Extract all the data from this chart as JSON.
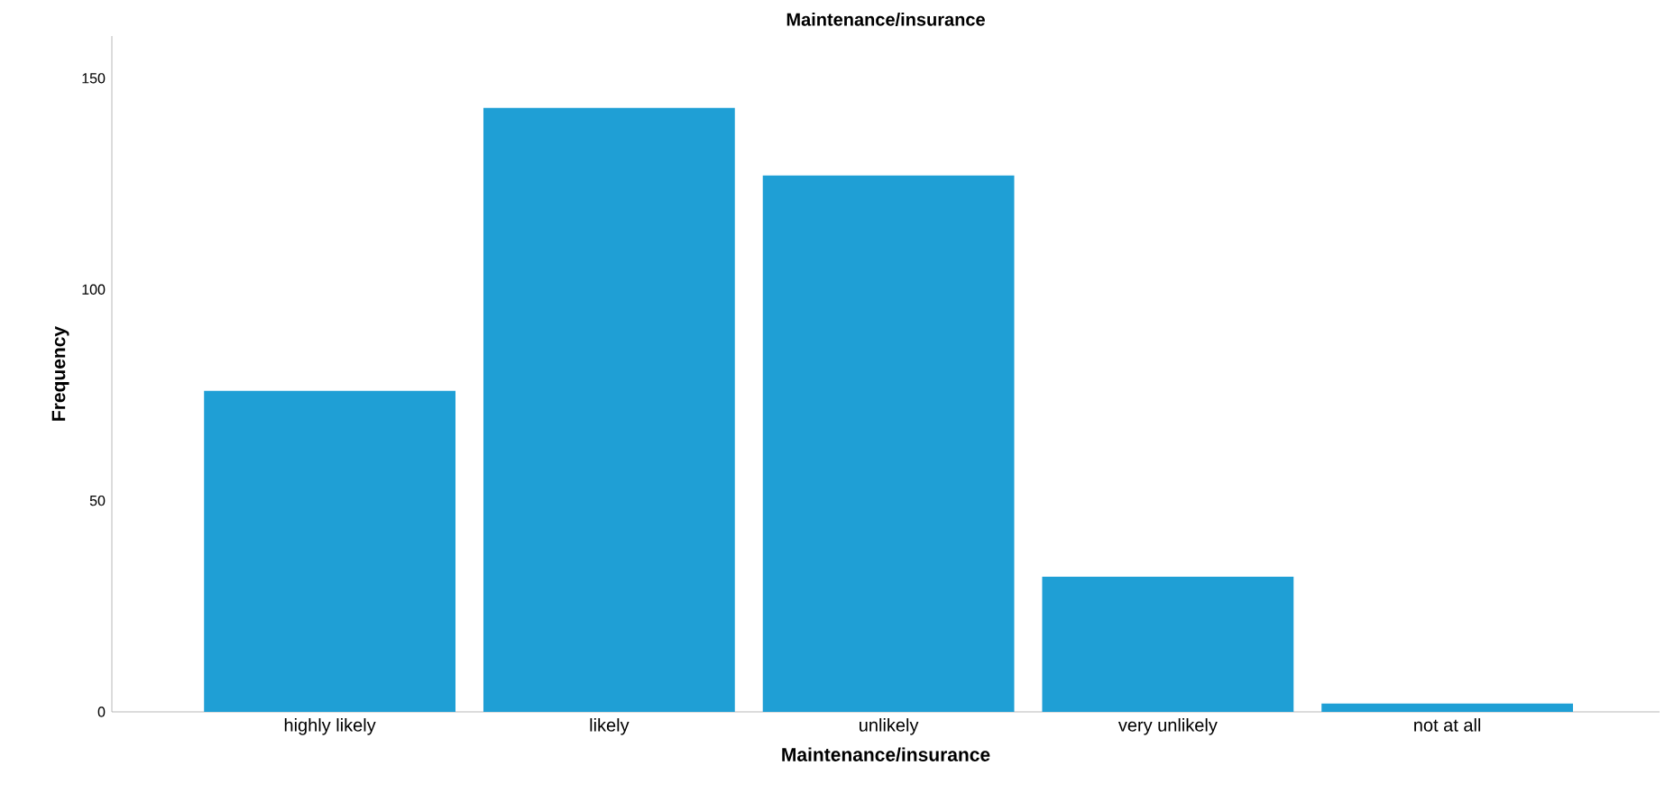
{
  "chart_data": {
    "type": "bar",
    "title": "Maintenance/insurance",
    "xlabel": "Maintenance/insurance",
    "ylabel": "Frequency",
    "categories": [
      "highly likely",
      "likely",
      "unlikely",
      "very unlikely",
      "not at all"
    ],
    "values": [
      76,
      143,
      127,
      32,
      2
    ],
    "color": "#1f9fd5",
    "ylim": [
      0,
      160
    ],
    "yticks": [
      0,
      50,
      100,
      150
    ],
    "grid": false
  }
}
